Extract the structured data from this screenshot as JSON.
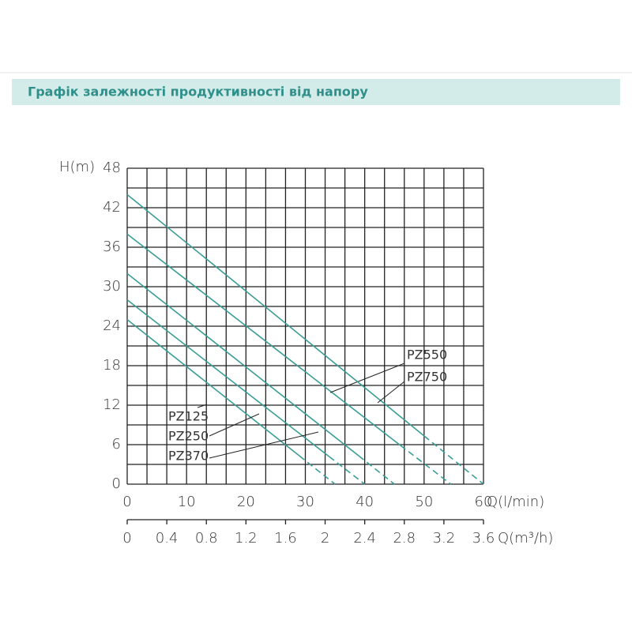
{
  "header": {
    "title": "Графік залежності продуктивності від напору"
  },
  "chart_data": {
    "type": "line",
    "y_label": "H(m)",
    "x_label": "Q(l/min)",
    "x2_label": "Q(m³/h)",
    "xlim": [
      0,
      60
    ],
    "xticks": [
      0,
      10,
      20,
      30,
      40,
      50,
      60
    ],
    "ylim": [
      0,
      48
    ],
    "yticks": [
      0,
      6,
      12,
      18,
      24,
      30,
      36,
      42,
      48
    ],
    "x2lim": [
      0,
      3.6
    ],
    "x2ticks": [
      0,
      0.4,
      0.8,
      1.2,
      1.6,
      2,
      2.4,
      2.8,
      3.2,
      3.6
    ],
    "x2grid": [
      0,
      0.2,
      0.4,
      0.6,
      0.8,
      1,
      1.2,
      1.4,
      1.6,
      1.8,
      2,
      2.2,
      2.4,
      2.6,
      2.8,
      3,
      3.2,
      3.4,
      3.6
    ],
    "ygrid": [
      0,
      3,
      6,
      9,
      12,
      15,
      18,
      21,
      24,
      27,
      30,
      33,
      36,
      39,
      42,
      45,
      48
    ],
    "grid": true,
    "dashed_tail": true,
    "color": "#3a9e96",
    "series": [
      {
        "name": "PZ125",
        "x": [
          0,
          29,
          35
        ],
        "values": [
          25,
          4.3,
          0
        ]
      },
      {
        "name": "PZ250",
        "x": [
          0,
          34,
          40
        ],
        "values": [
          28,
          4.2,
          0
        ]
      },
      {
        "name": "PZ370",
        "x": [
          0,
          39,
          45
        ],
        "values": [
          32,
          4.3,
          0
        ]
      },
      {
        "name": "PZ550",
        "x": [
          0,
          46,
          54.5
        ],
        "values": [
          38,
          5.9,
          0
        ]
      },
      {
        "name": "PZ750",
        "x": [
          0,
          50,
          60
        ],
        "values": [
          44,
          7.33,
          0
        ]
      }
    ]
  }
}
